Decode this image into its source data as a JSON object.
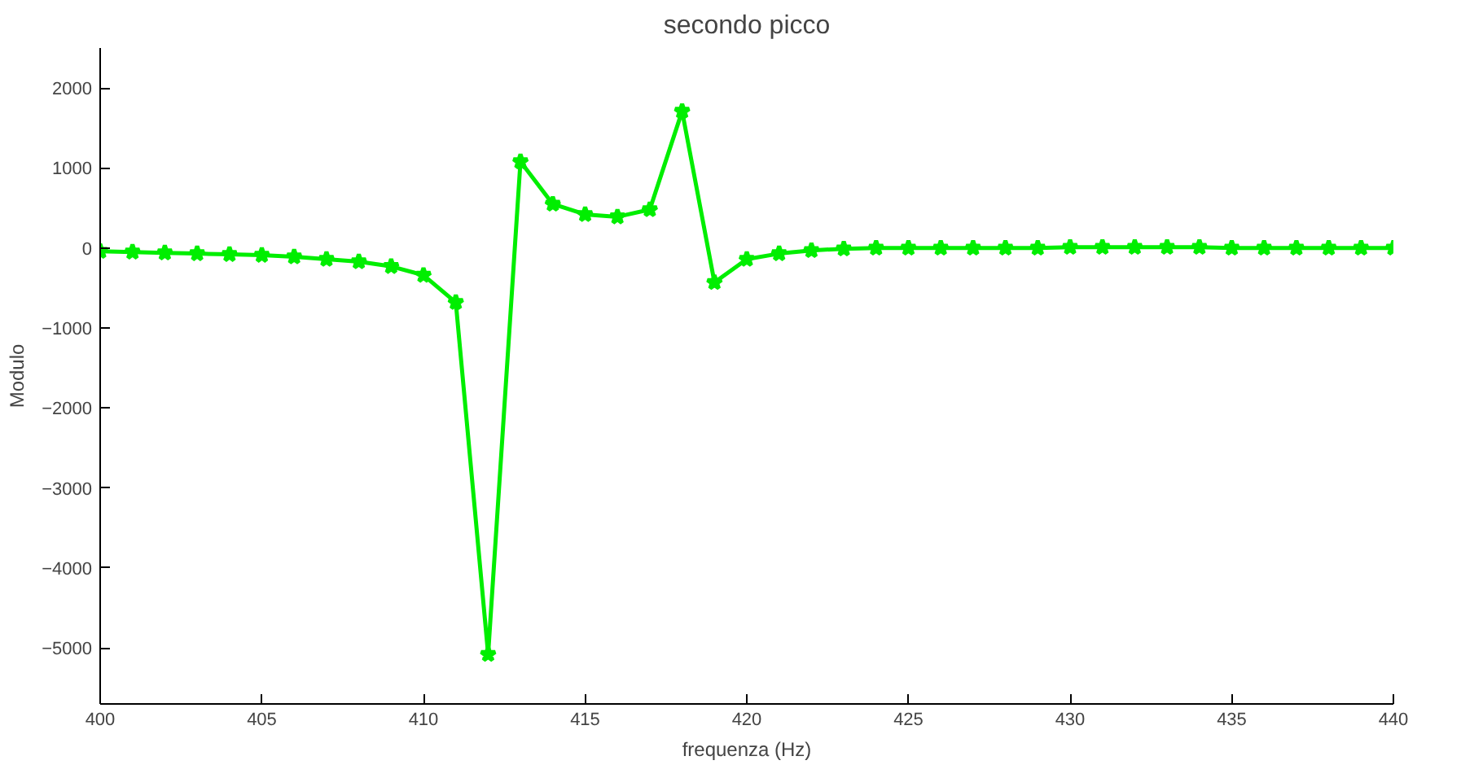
{
  "chart_data": {
    "type": "line",
    "title": "secondo picco",
    "xlabel": "frequenza (Hz)",
    "ylabel": "Modulo",
    "x": [
      400,
      401,
      402,
      403,
      404,
      405,
      406,
      407,
      408,
      409,
      410,
      411,
      412,
      413,
      414,
      415,
      416,
      417,
      418,
      419,
      420,
      421,
      422,
      423,
      424,
      425,
      426,
      427,
      428,
      429,
      430,
      431,
      432,
      433,
      434,
      435,
      436,
      437,
      438,
      439,
      440
    ],
    "series": [
      {
        "color": "#00ee00",
        "values": [
          -40,
          -50,
          -60,
          -70,
          -80,
          -90,
          -110,
          -140,
          -170,
          -230,
          -340,
          -680,
          -5080,
          1080,
          550,
          420,
          390,
          480,
          1710,
          -430,
          -140,
          -70,
          -30,
          -10,
          0,
          0,
          0,
          0,
          0,
          0,
          10,
          10,
          10,
          10,
          10,
          0,
          0,
          0,
          0,
          0,
          0
        ]
      }
    ],
    "xlim": [
      400,
      440
    ],
    "xticks": [
      400,
      405,
      410,
      415,
      420,
      425,
      430,
      435,
      440
    ],
    "ylim": [
      -5700,
      2500
    ],
    "yticks": [
      -5000,
      -4000,
      -3000,
      -2000,
      -1000,
      0,
      1000,
      2000
    ],
    "grid": false,
    "marker": "star",
    "line_style": "solid"
  }
}
